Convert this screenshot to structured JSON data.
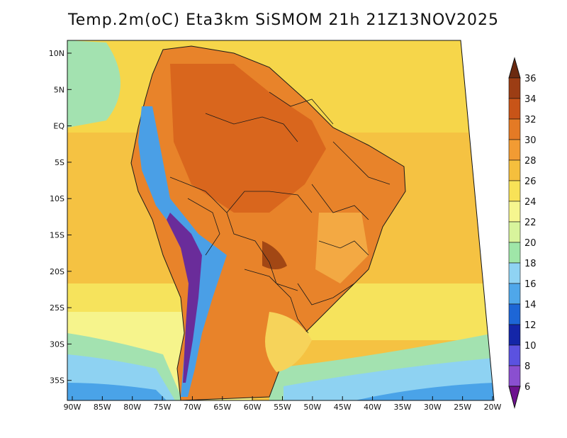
{
  "title": "Temp.2m(oC) Eta3km SiSMOM 21h 21Z13NOV2025",
  "lat_ticks": [
    "10N",
    "5N",
    "EQ",
    "5S",
    "10S",
    "15S",
    "20S",
    "25S",
    "30S",
    "35S"
  ],
  "lon_ticks": [
    "90W",
    "85W",
    "80W",
    "75W",
    "70W",
    "65W",
    "60W",
    "55W",
    "50W",
    "45W",
    "40W",
    "35W",
    "30W",
    "25W",
    "20W"
  ],
  "colorbar": {
    "labels": [
      "36",
      "34",
      "32",
      "30",
      "28",
      "26",
      "24",
      "22",
      "20",
      "18",
      "16",
      "14",
      "12",
      "10",
      "8",
      "6"
    ],
    "colors": [
      "#6b2a10",
      "#9c3d14",
      "#c85418",
      "#e47a25",
      "#f29b33",
      "#f5bf3d",
      "#f8e257",
      "#f6f68f",
      "#d8f49c",
      "#9fe6a8",
      "#8fd3f3",
      "#4fa7ea",
      "#1d66d6",
      "#1426a8",
      "#5b52e0",
      "#8a4fd0",
      "#9b33c0",
      "#6d128f"
    ]
  }
}
